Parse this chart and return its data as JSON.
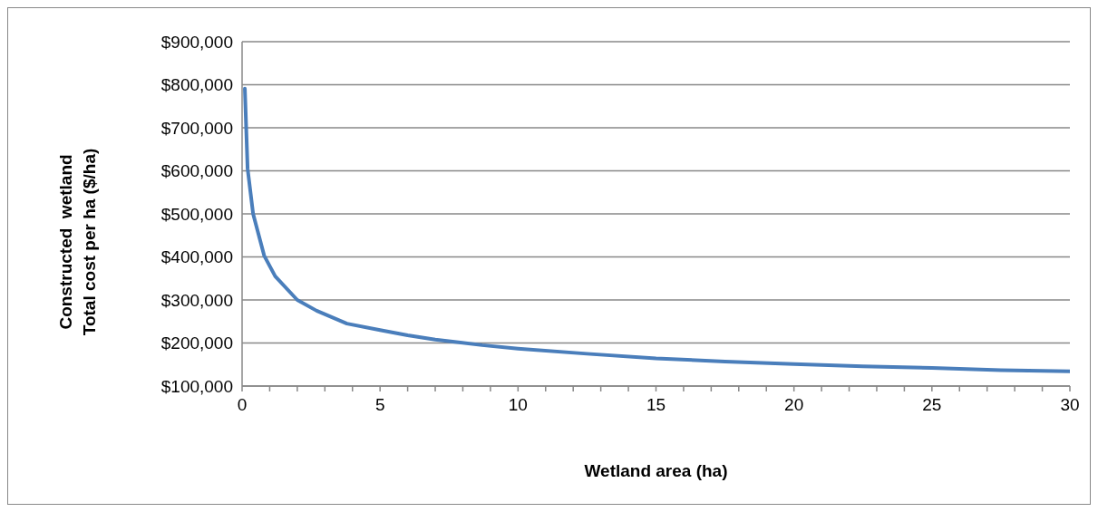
{
  "chart_data": {
    "type": "line",
    "xlabel": "Wetland area (ha)",
    "ylabel": "Constructed  wetland\nTotal cost per ha ($/ha)",
    "x": [
      0.1,
      0.2,
      0.4,
      0.8,
      1.2,
      2,
      2.7,
      3.8,
      5,
      6,
      7,
      8.7,
      10,
      12.5,
      15,
      17.5,
      20,
      22.5,
      25,
      27.5,
      30
    ],
    "series": [
      {
        "color": "#4a7ebb",
        "values": [
          791000,
          605000,
          500000,
          403000,
          355000,
          300000,
          275000,
          245000,
          230000,
          218000,
          208000,
          195000,
          187000,
          175000,
          164000,
          157000,
          151000,
          146000,
          142000,
          137000,
          134000
        ]
      }
    ],
    "xlim": [
      0,
      30
    ],
    "xticks": [
      0,
      {
        "value": 1,
        "label": null
      },
      {
        "value": 2,
        "label": null
      },
      {
        "value": 3,
        "label": null
      },
      {
        "value": 4,
        "label": null
      },
      5,
      {
        "value": 6,
        "label": null
      },
      {
        "value": 7,
        "label": null
      },
      {
        "value": 8,
        "label": null
      },
      {
        "value": 9,
        "label": null
      },
      10,
      {
        "value": 11,
        "label": null
      },
      {
        "value": 12,
        "label": null
      },
      {
        "value": 13,
        "label": null
      },
      {
        "value": 14,
        "label": null
      },
      15,
      {
        "value": 16,
        "label": null
      },
      {
        "value": 17,
        "label": null
      },
      {
        "value": 18,
        "label": null
      },
      {
        "value": 19,
        "label": null
      },
      20,
      {
        "value": 21,
        "label": null
      },
      {
        "value": 22,
        "label": null
      },
      {
        "value": 23,
        "label": null
      },
      {
        "value": 24,
        "label": null
      },
      25,
      {
        "value": 26,
        "label": null
      },
      {
        "value": 27,
        "label": null
      },
      {
        "value": 28,
        "label": null
      },
      {
        "value": 29,
        "label": null
      },
      30
    ],
    "ylim": [
      100000,
      900000
    ],
    "yticks": [
      {
        "value": 100000,
        "label": "$100,000"
      },
      {
        "value": 200000,
        "label": "$200,000"
      },
      {
        "value": 300000,
        "label": "$300,000"
      },
      {
        "value": 400000,
        "label": "$400,000"
      },
      {
        "value": 500000,
        "label": "$500,000"
      },
      {
        "value": 600000,
        "label": "$600,000"
      },
      {
        "value": 700000,
        "label": "$700,000"
      },
      {
        "value": 800000,
        "label": "$800,000"
      },
      {
        "value": 900000,
        "label": "$900,000"
      }
    ],
    "grid": "y",
    "marker": "none",
    "line_style": "solid"
  }
}
